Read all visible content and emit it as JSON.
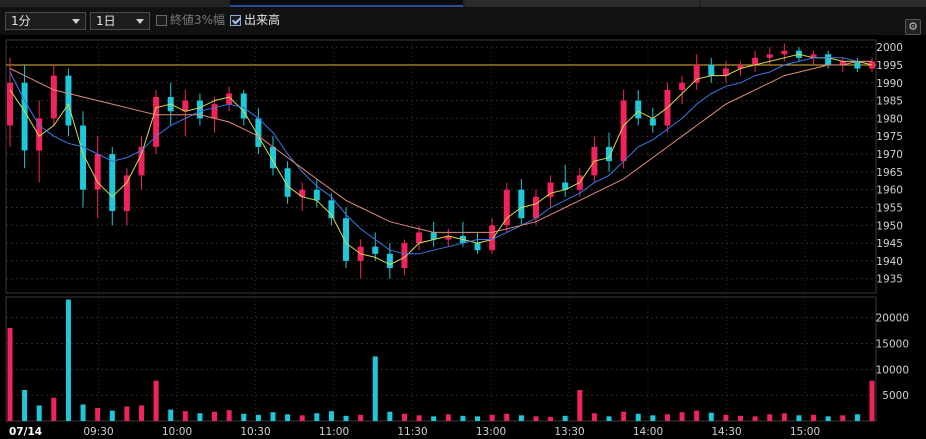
{
  "toolbar": {
    "interval": "1分",
    "span": "1日",
    "band_label": "終値3%幅",
    "band_checked": false,
    "volume_label": "出来高",
    "volume_checked": true,
    "settings_icon": "gear-icon"
  },
  "colors": {
    "up": "#f0245c",
    "down": "#1ec8d8",
    "ma_short": "#d8d84a",
    "ma_mid": "#3a78e8",
    "ma_long": "#e08a7a",
    "ref_line": "#e6b840"
  },
  "chart_data": [
    {
      "type": "candlestick",
      "date_label": "07/14",
      "x_ticks": [
        "09:30",
        "10:00",
        "10:30",
        "11:00",
        "11:30",
        "13:00",
        "13:30",
        "14:00",
        "14:30",
        "15:00"
      ],
      "y_ticks": [
        1935,
        1940,
        1945,
        1950,
        1955,
        1960,
        1965,
        1970,
        1975,
        1980,
        1985,
        1990,
        1995,
        2000
      ],
      "ylim": [
        1931,
        2002
      ],
      "reference_line": 1995,
      "grid": true,
      "series": [
        {
          "name": "",
          "type": "candles",
          "values": [
            [
              1978,
              1997,
              1972,
              1990
            ],
            [
              1990,
              1995,
              1966,
              1971
            ],
            [
              1971,
              1985,
              1962,
              1980
            ],
            [
              1980,
              1995,
              1978,
              1992
            ],
            [
              1992,
              1994,
              1975,
              1978
            ],
            [
              1978,
              1982,
              1955,
              1960
            ],
            [
              1960,
              1975,
              1952,
              1970
            ],
            [
              1970,
              1972,
              1950,
              1954
            ],
            [
              1954,
              1966,
              1950,
              1964
            ],
            [
              1964,
              1975,
              1960,
              1972
            ],
            [
              1972,
              1988,
              1970,
              1986
            ],
            [
              1986,
              1990,
              1978,
              1982
            ],
            [
              1982,
              1988,
              1975,
              1985
            ],
            [
              1985,
              1987,
              1978,
              1980
            ],
            [
              1980,
              1986,
              1976,
              1984
            ],
            [
              1984,
              1989,
              1982,
              1987
            ],
            [
              1987,
              1988,
              1978,
              1980
            ],
            [
              1980,
              1983,
              1970,
              1972
            ],
            [
              1972,
              1975,
              1964,
              1966
            ],
            [
              1966,
              1968,
              1956,
              1958
            ],
            [
              1958,
              1962,
              1954,
              1960
            ],
            [
              1960,
              1963,
              1955,
              1957
            ],
            [
              1957,
              1959,
              1950,
              1952
            ],
            [
              1952,
              1955,
              1938,
              1940
            ],
            [
              1940,
              1946,
              1935,
              1944
            ],
            [
              1944,
              1948,
              1940,
              1942
            ],
            [
              1942,
              1945,
              1935,
              1938
            ],
            [
              1938,
              1946,
              1936,
              1945
            ],
            [
              1945,
              1950,
              1943,
              1948
            ],
            [
              1948,
              1951,
              1944,
              1946
            ],
            [
              1946,
              1949,
              1944,
              1947
            ],
            [
              1947,
              1951,
              1944,
              1945
            ],
            [
              1945,
              1948,
              1942,
              1943
            ],
            [
              1943,
              1952,
              1942,
              1950
            ],
            [
              1950,
              1962,
              1948,
              1960
            ],
            [
              1960,
              1963,
              1950,
              1952
            ],
            [
              1952,
              1960,
              1950,
              1958
            ],
            [
              1958,
              1964,
              1955,
              1962
            ],
            [
              1962,
              1967,
              1958,
              1960
            ],
            [
              1960,
              1966,
              1958,
              1964
            ],
            [
              1964,
              1975,
              1962,
              1972
            ],
            [
              1972,
              1976,
              1965,
              1968
            ],
            [
              1968,
              1988,
              1966,
              1985
            ],
            [
              1985,
              1988,
              1978,
              1980
            ],
            [
              1980,
              1983,
              1976,
              1978
            ],
            [
              1978,
              1990,
              1976,
              1988
            ],
            [
              1988,
              1992,
              1984,
              1990
            ],
            [
              1990,
              1998,
              1988,
              1995
            ],
            [
              1995,
              1997,
              1990,
              1992
            ],
            [
              1992,
              1996,
              1990,
              1994
            ],
            [
              1994,
              1996,
              1992,
              1995
            ],
            [
              1995,
              1999,
              1993,
              1997
            ],
            [
              1997,
              2000,
              1995,
              1998
            ],
            [
              1998,
              2001,
              1996,
              1999
            ],
            [
              1999,
              2000,
              1996,
              1997
            ],
            [
              1997,
              1999,
              1995,
              1998
            ],
            [
              1998,
              1999,
              1994,
              1995
            ],
            [
              1995,
              1997,
              1993,
              1996
            ],
            [
              1996,
              1997,
              1993,
              1994
            ],
            [
              1994,
              1997,
              1993,
              1996
            ]
          ]
        },
        {
          "name": "",
          "type": "ma",
          "color": "#d8d84a",
          "values": [
            1988,
            1982,
            1975,
            1978,
            1984,
            1970,
            1962,
            1958,
            1962,
            1970,
            1983,
            1984,
            1982,
            1983,
            1985,
            1986,
            1982,
            1975,
            1968,
            1961,
            1958,
            1957,
            1953,
            1945,
            1942,
            1941,
            1939,
            1941,
            1945,
            1946,
            1947,
            1946,
            1945,
            1946,
            1952,
            1955,
            1956,
            1959,
            1960,
            1962,
            1968,
            1969,
            1978,
            1982,
            1980,
            1983,
            1987,
            1991,
            1992,
            1992,
            1994,
            1995,
            1996,
            1997,
            1998,
            1997,
            1997,
            1996,
            1996,
            1995
          ]
        },
        {
          "name": "",
          "type": "ma",
          "color": "#3a78e8",
          "values": [
            1993,
            1985,
            1978,
            1975,
            1973,
            1972,
            1970,
            1968,
            1969,
            1971,
            1975,
            1978,
            1980,
            1982,
            1983,
            1984,
            1983,
            1980,
            1976,
            1970,
            1965,
            1961,
            1958,
            1953,
            1949,
            1946,
            1943,
            1942,
            1942,
            1943,
            1944,
            1945,
            1946,
            1946,
            1948,
            1950,
            1952,
            1955,
            1957,
            1959,
            1962,
            1964,
            1968,
            1972,
            1974,
            1977,
            1980,
            1984,
            1987,
            1989,
            1990,
            1992,
            1993,
            1995,
            1996,
            1997,
            1997,
            1997,
            1996,
            1996
          ]
        },
        {
          "name": "",
          "type": "ma",
          "color": "#e08a7a",
          "values": [
            1994,
            1992,
            1990,
            1988,
            1987,
            1986,
            1985,
            1984,
            1983,
            1982,
            1981,
            1981,
            1981,
            1981,
            1980,
            1979,
            1977,
            1975,
            1972,
            1969,
            1966,
            1963,
            1960,
            1957,
            1955,
            1953,
            1951,
            1950,
            1949,
            1948,
            1948,
            1948,
            1948,
            1948,
            1949,
            1950,
            1951,
            1953,
            1955,
            1957,
            1959,
            1961,
            1963,
            1966,
            1969,
            1972,
            1975,
            1978,
            1981,
            1984,
            1986,
            1988,
            1990,
            1992,
            1993,
            1994,
            1995,
            1995,
            1996,
            1996
          ]
        }
      ]
    },
    {
      "type": "bar",
      "y_ticks": [
        5000,
        10000,
        15000,
        20000
      ],
      "ylim": [
        0,
        24000
      ],
      "values": [
        18000,
        6000,
        3000,
        4500,
        23500,
        3200,
        2500,
        2000,
        2800,
        3000,
        7800,
        2200,
        1900,
        1500,
        1800,
        2100,
        1400,
        1200,
        1700,
        1300,
        1100,
        1500,
        1900,
        1000,
        1200,
        12500,
        1800,
        1400,
        1100,
        900,
        1300,
        1000,
        900,
        1200,
        1400,
        1100,
        900,
        800,
        1000,
        6000,
        1500,
        900,
        1800,
        1400,
        1100,
        1300,
        1700,
        2000,
        1600,
        1200,
        1000,
        900,
        1300,
        1500,
        1100,
        1200,
        900,
        1100,
        1300,
        7800
      ],
      "up": [
        true,
        false,
        false,
        true,
        false,
        false,
        true,
        false,
        true,
        true,
        true,
        false,
        true,
        false,
        true,
        true,
        false,
        false,
        false,
        false,
        true,
        false,
        false,
        false,
        true,
        false,
        false,
        true,
        true,
        false,
        true,
        false,
        false,
        true,
        true,
        false,
        true,
        true,
        false,
        true,
        true,
        false,
        true,
        false,
        false,
        true,
        true,
        true,
        false,
        true,
        true,
        true,
        true,
        true,
        false,
        true,
        false,
        true,
        false,
        true
      ]
    }
  ]
}
